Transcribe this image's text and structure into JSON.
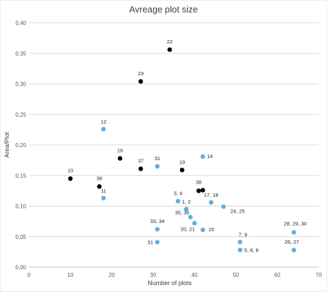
{
  "chart_data": {
    "type": "scatter",
    "title": "Avreage plot size",
    "xlabel": "Number of plots",
    "ylabel": "Area/Plot",
    "xlim": [
      0,
      70
    ],
    "ylim": [
      0,
      0.4
    ],
    "x_ticks": [
      "0",
      "10",
      "20",
      "30",
      "40",
      "50",
      "60",
      "70"
    ],
    "y_ticks": [
      "0,00",
      "0,05",
      "0,10",
      "0,15",
      "0,20",
      "0,25",
      "0,30",
      "0,35",
      "0,40"
    ],
    "grid": "horizontal",
    "legend": "none",
    "series": [
      {
        "color": "#000000",
        "points": [
          {
            "x": 34,
            "y": 0.356,
            "label": "22"
          },
          {
            "x": 27,
            "y": 0.304,
            "label": "23"
          },
          {
            "x": 22,
            "y": 0.178,
            "label": "16"
          },
          {
            "x": 27,
            "y": 0.161,
            "label": "37"
          },
          {
            "x": 10,
            "y": 0.145,
            "label": "10"
          },
          {
            "x": 37,
            "y": 0.159,
            "label": "19"
          },
          {
            "x": 17,
            "y": 0.132,
            "label": "39"
          },
          {
            "x": 41,
            "y": 0.125,
            "label": "38"
          },
          {
            "x": 42,
            "y": 0.126,
            "label": ""
          }
        ]
      },
      {
        "color": "#5fb0e0",
        "points": [
          {
            "x": 18,
            "y": 0.226,
            "label": "12"
          },
          {
            "x": 42,
            "y": 0.181,
            "label": "14"
          },
          {
            "x": 31,
            "y": 0.165,
            "label": "31"
          },
          {
            "x": 18,
            "y": 0.113,
            "label": "11"
          },
          {
            "x": 36,
            "y": 0.108,
            "label": "3, 4"
          },
          {
            "x": 38,
            "y": 0.095,
            "label": "1, 2"
          },
          {
            "x": 44,
            "y": 0.106,
            "label": "17, 18"
          },
          {
            "x": 47,
            "y": 0.099,
            "label": "24, 25"
          },
          {
            "x": 39,
            "y": 0.082,
            "label": "35, 36"
          },
          {
            "x": 40,
            "y": 0.072,
            "label": "20, 21"
          },
          {
            "x": 42,
            "y": 0.061,
            "label": "15"
          },
          {
            "x": 31,
            "y": 0.062,
            "label": "33, 34"
          },
          {
            "x": 31,
            "y": 0.041,
            "label": "31"
          },
          {
            "x": 51,
            "y": 0.041,
            "label": "7, 9"
          },
          {
            "x": 51,
            "y": 0.028,
            "label": "5, 6, 8"
          },
          {
            "x": 64,
            "y": 0.057,
            "label": "28, 29, 30"
          },
          {
            "x": 64,
            "y": 0.028,
            "label": "26, 27"
          }
        ]
      }
    ]
  }
}
